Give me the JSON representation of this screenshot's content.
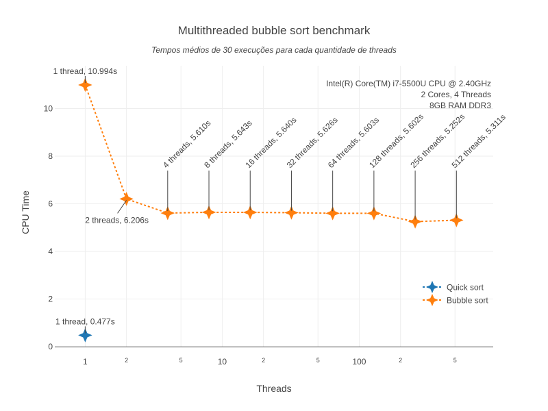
{
  "chart_data": {
    "type": "scatter",
    "title": "Multithreaded bubble sort benchmark",
    "subtitle": "Tempos médios de 30 execuções para cada quantidade de threads",
    "xlabel": "Threads",
    "ylabel": "CPU Time",
    "x_scale": "log",
    "xlim": [
      0.6,
      950
    ],
    "ylim": [
      0,
      11.8
    ],
    "grid": true,
    "legend_position": "right",
    "y_ticks": [
      0,
      2,
      4,
      6,
      8,
      10
    ],
    "x_ticks_major": [
      {
        "value": 1,
        "label": "1"
      },
      {
        "value": 10,
        "label": "10"
      },
      {
        "value": 100,
        "label": "100"
      }
    ],
    "x_ticks_minor": [
      {
        "value": 2,
        "label": "2"
      },
      {
        "value": 5,
        "label": "5"
      },
      {
        "value": 20,
        "label": "2"
      },
      {
        "value": 50,
        "label": "5"
      },
      {
        "value": 200,
        "label": "2"
      },
      {
        "value": 500,
        "label": "5"
      }
    ],
    "series": [
      {
        "name": "Quick sort",
        "color": "#1f77b4",
        "x": [
          1
        ],
        "y": [
          0.477
        ]
      },
      {
        "name": "Bubble sort",
        "color": "#ff7f0e",
        "x": [
          1,
          2,
          4,
          8,
          16,
          32,
          64,
          128,
          256,
          512
        ],
        "y": [
          10.994,
          6.206,
          5.61,
          5.643,
          5.64,
          5.626,
          5.603,
          5.602,
          5.252,
          5.311
        ]
      }
    ],
    "annotations": [
      {
        "text": "1 thread, 10.994s",
        "x": 1,
        "y": 10.994,
        "style": "above"
      },
      {
        "text": "2 threads, 6.206s",
        "x": 2,
        "y": 6.206,
        "style": "below-left"
      },
      {
        "text": "4 threads, 5.610s",
        "x": 4,
        "y": 5.61,
        "style": "rotated"
      },
      {
        "text": "8 threads, 5.643s",
        "x": 8,
        "y": 5.643,
        "style": "rotated"
      },
      {
        "text": "16 threads, 5.640s",
        "x": 16,
        "y": 5.64,
        "style": "rotated"
      },
      {
        "text": "32 threads, 5.626s",
        "x": 32,
        "y": 5.626,
        "style": "rotated"
      },
      {
        "text": "64 threads, 5.603s",
        "x": 64,
        "y": 5.603,
        "style": "rotated"
      },
      {
        "text": "128 threads, 5.602s",
        "x": 128,
        "y": 5.602,
        "style": "rotated"
      },
      {
        "text": "256 threads, 5.252s",
        "x": 256,
        "y": 5.252,
        "style": "rotated"
      },
      {
        "text": "512 threads, 5.311s",
        "x": 512,
        "y": 5.311,
        "style": "rotated"
      },
      {
        "text": "1 thread, 0.477s",
        "x": 1,
        "y": 0.477,
        "style": "above"
      }
    ],
    "info_box": [
      "Intel(R) Core(TM) i7-5500U CPU @ 2.40GHz",
      "2 Cores, 4 Threads",
      "8GB RAM DDR3"
    ]
  }
}
